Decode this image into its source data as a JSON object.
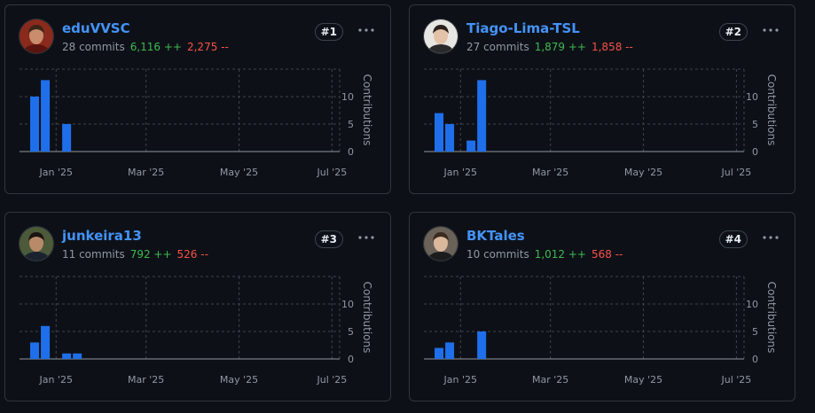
{
  "contributors": [
    {
      "username": "eduVVSC",
      "commits": "28 commits",
      "additions": "6,116 ++",
      "deletions": "2,275 --",
      "rank": "#1",
      "avatar": {
        "skin": "#c98c6c",
        "hair": "#3b2418",
        "bg": "#8a2a1c",
        "shirt": "#5a1410"
      }
    },
    {
      "username": "Tiago-Lima-TSL",
      "commits": "27 commits",
      "additions": "1,879 ++",
      "deletions": "1,858 --",
      "rank": "#2",
      "avatar": {
        "skin": "#e3c2a8",
        "hair": "#2b211c",
        "bg": "#e8e6e2",
        "shirt": "#2a2a2a"
      }
    },
    {
      "username": "junkeira13",
      "commits": "11 commits",
      "additions": "792 ++",
      "deletions": "526 --",
      "rank": "#3",
      "avatar": {
        "skin": "#b88a6a",
        "hair": "#1b1410",
        "bg": "#4d5a3a",
        "shirt": "#1a2230"
      }
    },
    {
      "username": "BKTales",
      "commits": "10 commits",
      "additions": "1,012 ++",
      "deletions": "568 --",
      "rank": "#4",
      "avatar": {
        "skin": "#d9b89c",
        "hair": "#3a2a20",
        "bg": "#6a6258",
        "shirt": "#1c1c1c"
      }
    }
  ],
  "chart_data": [
    {
      "type": "bar",
      "contributor": "eduVVSC",
      "ylabel": "Contributions",
      "ylim": [
        0,
        15
      ],
      "yticks": [
        0,
        5,
        10
      ],
      "x_ticks": [
        "Jan '25",
        "Mar '25",
        "May '25",
        "Jul '25"
      ],
      "x_range": [
        "2024-12-08",
        "2025-07-06"
      ],
      "grid": true,
      "series": [
        {
          "weeks": [
            "2024-12-15",
            "2024-12-22",
            "2025-01-05"
          ],
          "values": [
            10,
            13,
            5
          ]
        }
      ]
    },
    {
      "type": "bar",
      "contributor": "Tiago-Lima-TSL",
      "ylabel": "Contributions",
      "ylim": [
        0,
        15
      ],
      "yticks": [
        0,
        5,
        10
      ],
      "x_ticks": [
        "Jan '25",
        "Mar '25",
        "May '25",
        "Jul '25"
      ],
      "x_range": [
        "2024-12-08",
        "2025-07-06"
      ],
      "grid": true,
      "series": [
        {
          "weeks": [
            "2024-12-15",
            "2024-12-22",
            "2025-01-05",
            "2025-01-12"
          ],
          "values": [
            7,
            5,
            2,
            13
          ]
        }
      ]
    },
    {
      "type": "bar",
      "contributor": "junkeira13",
      "ylabel": "Contributions",
      "ylim": [
        0,
        15
      ],
      "yticks": [
        0,
        5,
        10
      ],
      "x_ticks": [
        "Jan '25",
        "Mar '25",
        "May '25",
        "Jul '25"
      ],
      "x_range": [
        "2024-12-08",
        "2025-07-06"
      ],
      "grid": true,
      "series": [
        {
          "weeks": [
            "2024-12-15",
            "2024-12-22",
            "2025-01-05",
            "2025-01-12"
          ],
          "values": [
            3,
            6,
            1,
            1
          ]
        }
      ]
    },
    {
      "type": "bar",
      "contributor": "BKTales",
      "ylabel": "Contributions",
      "ylim": [
        0,
        15
      ],
      "yticks": [
        0,
        5,
        10
      ],
      "x_ticks": [
        "Jan '25",
        "Mar '25",
        "May '25",
        "Jul '25"
      ],
      "x_range": [
        "2024-12-08",
        "2025-07-06"
      ],
      "grid": true,
      "series": [
        {
          "weeks": [
            "2024-12-15",
            "2024-12-22",
            "2025-01-12"
          ],
          "values": [
            2,
            3,
            5
          ]
        }
      ]
    }
  ],
  "colors": {
    "bar": "#1f6feb",
    "grid": "#3d444d",
    "axis": "#9198a1",
    "link": "#4493f8",
    "add": "#3fb950",
    "del": "#f85149"
  }
}
